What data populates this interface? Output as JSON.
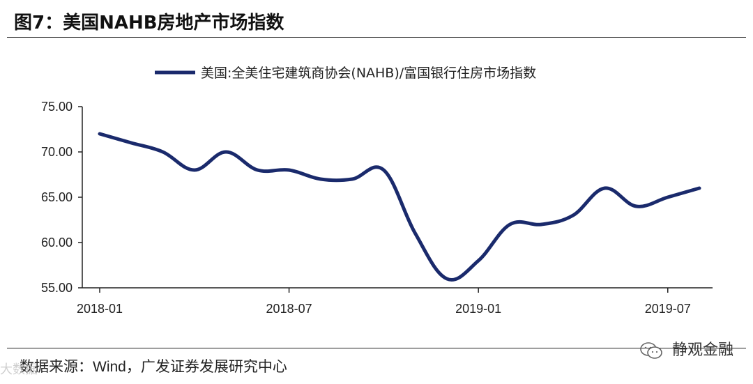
{
  "header": {
    "title": "图7：美国NAHB房地产市场指数"
  },
  "footer": {
    "source": "数据来源：Wind，广发证券发展研究中心",
    "watermark_right": "静观金融",
    "watermark_left": "大数据"
  },
  "chart_data": {
    "type": "line",
    "title": "",
    "legend_label": "美国:全美住宅建筑商协会(NAHB)/富国银行住房市场指数",
    "line_color": "#1a2a6c",
    "ylim": [
      55,
      75
    ],
    "y_ticks": [
      "75.00",
      "70.00",
      "65.00",
      "60.00",
      "55.00"
    ],
    "y_tick_values": [
      75,
      70,
      65,
      60,
      55
    ],
    "x_tick_labels": [
      "2018-01",
      "2018-07",
      "2019-01",
      "2019-07"
    ],
    "x_tick_index": [
      0,
      6,
      12,
      18
    ],
    "x": [
      "2018-01",
      "2018-02",
      "2018-03",
      "2018-04",
      "2018-05",
      "2018-06",
      "2018-07",
      "2018-08",
      "2018-09",
      "2018-10",
      "2018-11",
      "2018-12",
      "2019-01",
      "2019-02",
      "2019-03",
      "2019-04",
      "2019-05",
      "2019-06",
      "2019-07",
      "2019-08"
    ],
    "values": [
      72,
      71,
      70,
      68,
      70,
      68,
      68,
      67,
      67,
      68,
      61,
      56,
      58,
      62,
      62,
      63,
      66,
      64,
      65,
      66
    ]
  }
}
